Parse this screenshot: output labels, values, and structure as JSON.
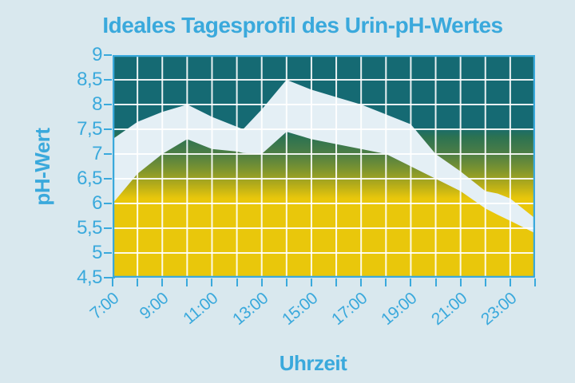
{
  "chart_data": {
    "type": "area",
    "title": "Ideales Tagesprofil des Urin-pH-Wertes",
    "xlabel": "Uhrzeit",
    "ylabel": "pH-Wert",
    "xlim": [
      7,
      24
    ],
    "ylim": [
      4.5,
      9
    ],
    "grid": "on",
    "x_gridline_step_hours": 1,
    "y_gridline_step_ph": 0.5,
    "x_tick_step_hours": 1,
    "x_tick_labels": [
      {
        "hour": 7,
        "label": "7:00"
      },
      {
        "hour": 9,
        "label": "9:00"
      },
      {
        "hour": 11,
        "label": "11:00"
      },
      {
        "hour": 13,
        "label": "13:00"
      },
      {
        "hour": 15,
        "label": "15:00"
      },
      {
        "hour": 17,
        "label": "17:00"
      },
      {
        "hour": 19,
        "label": "19:00"
      },
      {
        "hour": 21,
        "label": "21:00"
      },
      {
        "hour": 23,
        "label": "23:00"
      }
    ],
    "y_tick_labels": [
      {
        "ph": 9,
        "label": "9"
      },
      {
        "ph": 8.5,
        "label": "8,5"
      },
      {
        "ph": 8,
        "label": "8"
      },
      {
        "ph": 7.5,
        "label": "7,5"
      },
      {
        "ph": 7,
        "label": "7"
      },
      {
        "ph": 6.5,
        "label": "6,5"
      },
      {
        "ph": 6,
        "label": "6"
      },
      {
        "ph": 5.5,
        "label": "5,5"
      },
      {
        "ph": 5,
        "label": "5"
      },
      {
        "ph": 4.5,
        "label": "4,5"
      }
    ],
    "band": {
      "hours": [
        7,
        8,
        9,
        10,
        11,
        12,
        12.25,
        13,
        14,
        15,
        16,
        17,
        18,
        19,
        20,
        21,
        22,
        22.5,
        23,
        24
      ],
      "upper": [
        7.3,
        7.65,
        7.85,
        8.0,
        7.75,
        7.55,
        7.5,
        7.9,
        8.5,
        8.3,
        8.15,
        8.0,
        7.8,
        7.6,
        7.0,
        6.65,
        6.25,
        6.2,
        6.1,
        5.7
      ],
      "lower": [
        6.0,
        6.6,
        7.0,
        7.3,
        7.1,
        7.05,
        7.02,
        7.0,
        7.45,
        7.3,
        7.2,
        7.1,
        7.0,
        6.75,
        6.5,
        6.25,
        5.9,
        5.77,
        5.65,
        5.4
      ],
      "fill": "#e4eff5"
    },
    "background_gradient": [
      {
        "ph": 9.0,
        "color": "#156a73"
      },
      {
        "ph": 7.55,
        "color": "#156a73"
      },
      {
        "ph": 7.35,
        "color": "#2b7252"
      },
      {
        "ph": 7.0,
        "color": "#4e7e45"
      },
      {
        "ph": 6.7,
        "color": "#7a9330"
      },
      {
        "ph": 6.4,
        "color": "#b0aa1b"
      },
      {
        "ph": 6.1,
        "color": "#e9c70b"
      },
      {
        "ph": 4.5,
        "color": "#e9c70b"
      }
    ],
    "colors": {
      "page_background": "#d9e8ee",
      "grid": "#ffffff",
      "axis": "#3aa9dc",
      "text": "#3aa9dc"
    },
    "legend_position": "none"
  }
}
